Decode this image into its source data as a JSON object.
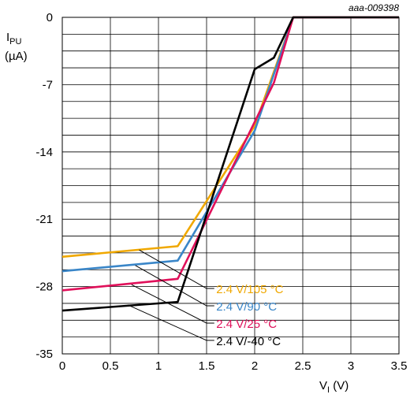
{
  "chart_data": {
    "type": "line",
    "reference": "aaa-009398",
    "ylabel_main": "I",
    "ylabel_sub": "PU",
    "ylabel_unit": "(µA)",
    "xlabel_main": "V",
    "xlabel_sub": "I",
    "xlabel_unit": "(V)",
    "xlim": [
      0,
      3.5
    ],
    "ylim": [
      -35,
      0
    ],
    "x_ticks": [
      "0",
      "0.5",
      "1",
      "1.5",
      "2",
      "2.5",
      "3",
      "3.5"
    ],
    "y_ticks": [
      "0",
      "-7",
      "-14",
      "-21",
      "-28",
      "-35"
    ],
    "grid": true,
    "series": [
      {
        "name": "2.4 V/105 °C",
        "color": "#f0a800",
        "x": [
          0,
          1.2,
          2.0,
          2.4,
          3.5
        ],
        "y": [
          -24.9,
          -23.8,
          -11.3,
          0,
          0
        ]
      },
      {
        "name": "2.4 V/90 °C",
        "color": "#3a86c8",
        "x": [
          0,
          1.2,
          2.0,
          2.4,
          3.5
        ],
        "y": [
          -26.4,
          -25.3,
          -11.8,
          0,
          0
        ]
      },
      {
        "name": "2.4 V/25 °C",
        "color": "#e0105a",
        "x": [
          0,
          1.2,
          2.2,
          2.4,
          3.5
        ],
        "y": [
          -28.4,
          -27.2,
          -6.8,
          0,
          0
        ]
      },
      {
        "name": "2.4 V/-40 °C",
        "color": "#000000",
        "x": [
          0,
          1.2,
          2.0,
          2.2,
          2.4,
          3.5
        ],
        "y": [
          -30.5,
          -29.6,
          -5.4,
          -4.2,
          0,
          0
        ]
      }
    ]
  }
}
